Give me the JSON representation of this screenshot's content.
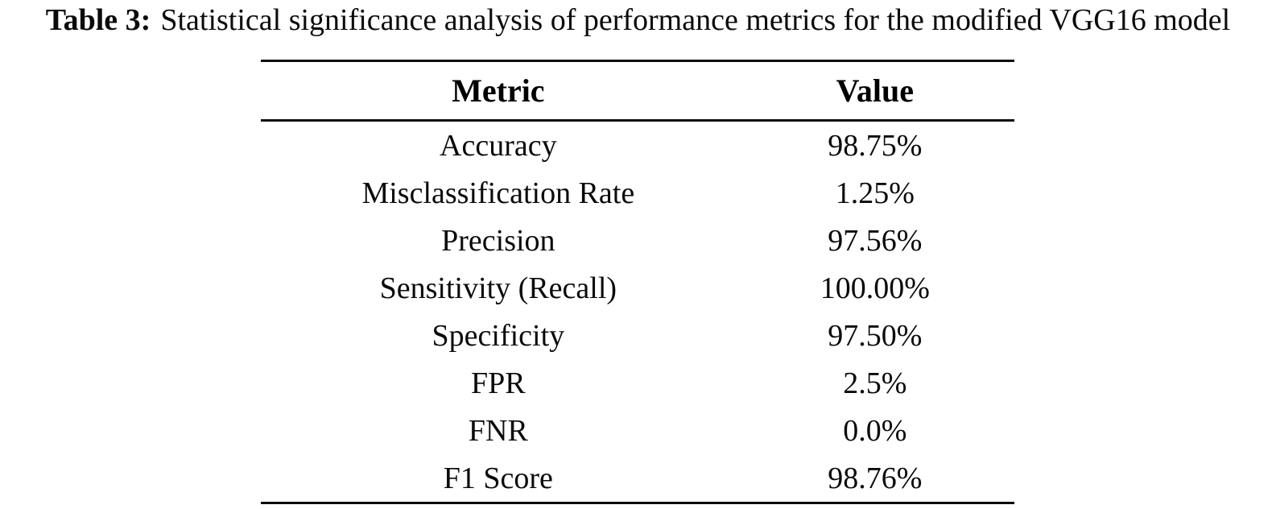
{
  "page": {
    "background_color": "#ffffff",
    "text_color": "#0b0b0b"
  },
  "caption": {
    "label": "Table 3:",
    "text": "Statistical significance analysis of performance metrics for the modified VGG16 model"
  },
  "table": {
    "columns": [
      {
        "label": "Metric"
      },
      {
        "label": "Value"
      }
    ],
    "rows": [
      {
        "metric": "Accuracy",
        "value": "98.75%"
      },
      {
        "metric": "Misclassification Rate",
        "value": "1.25%"
      },
      {
        "metric": "Precision",
        "value": "97.56%"
      },
      {
        "metric": "Sensitivity (Recall)",
        "value": "100.00%"
      },
      {
        "metric": "Specificity",
        "value": "97.50%"
      },
      {
        "metric": "FPR",
        "value": "2.5%"
      },
      {
        "metric": "FNR",
        "value": "0.0%"
      },
      {
        "metric": "F1 Score",
        "value": "98.76%"
      }
    ]
  }
}
